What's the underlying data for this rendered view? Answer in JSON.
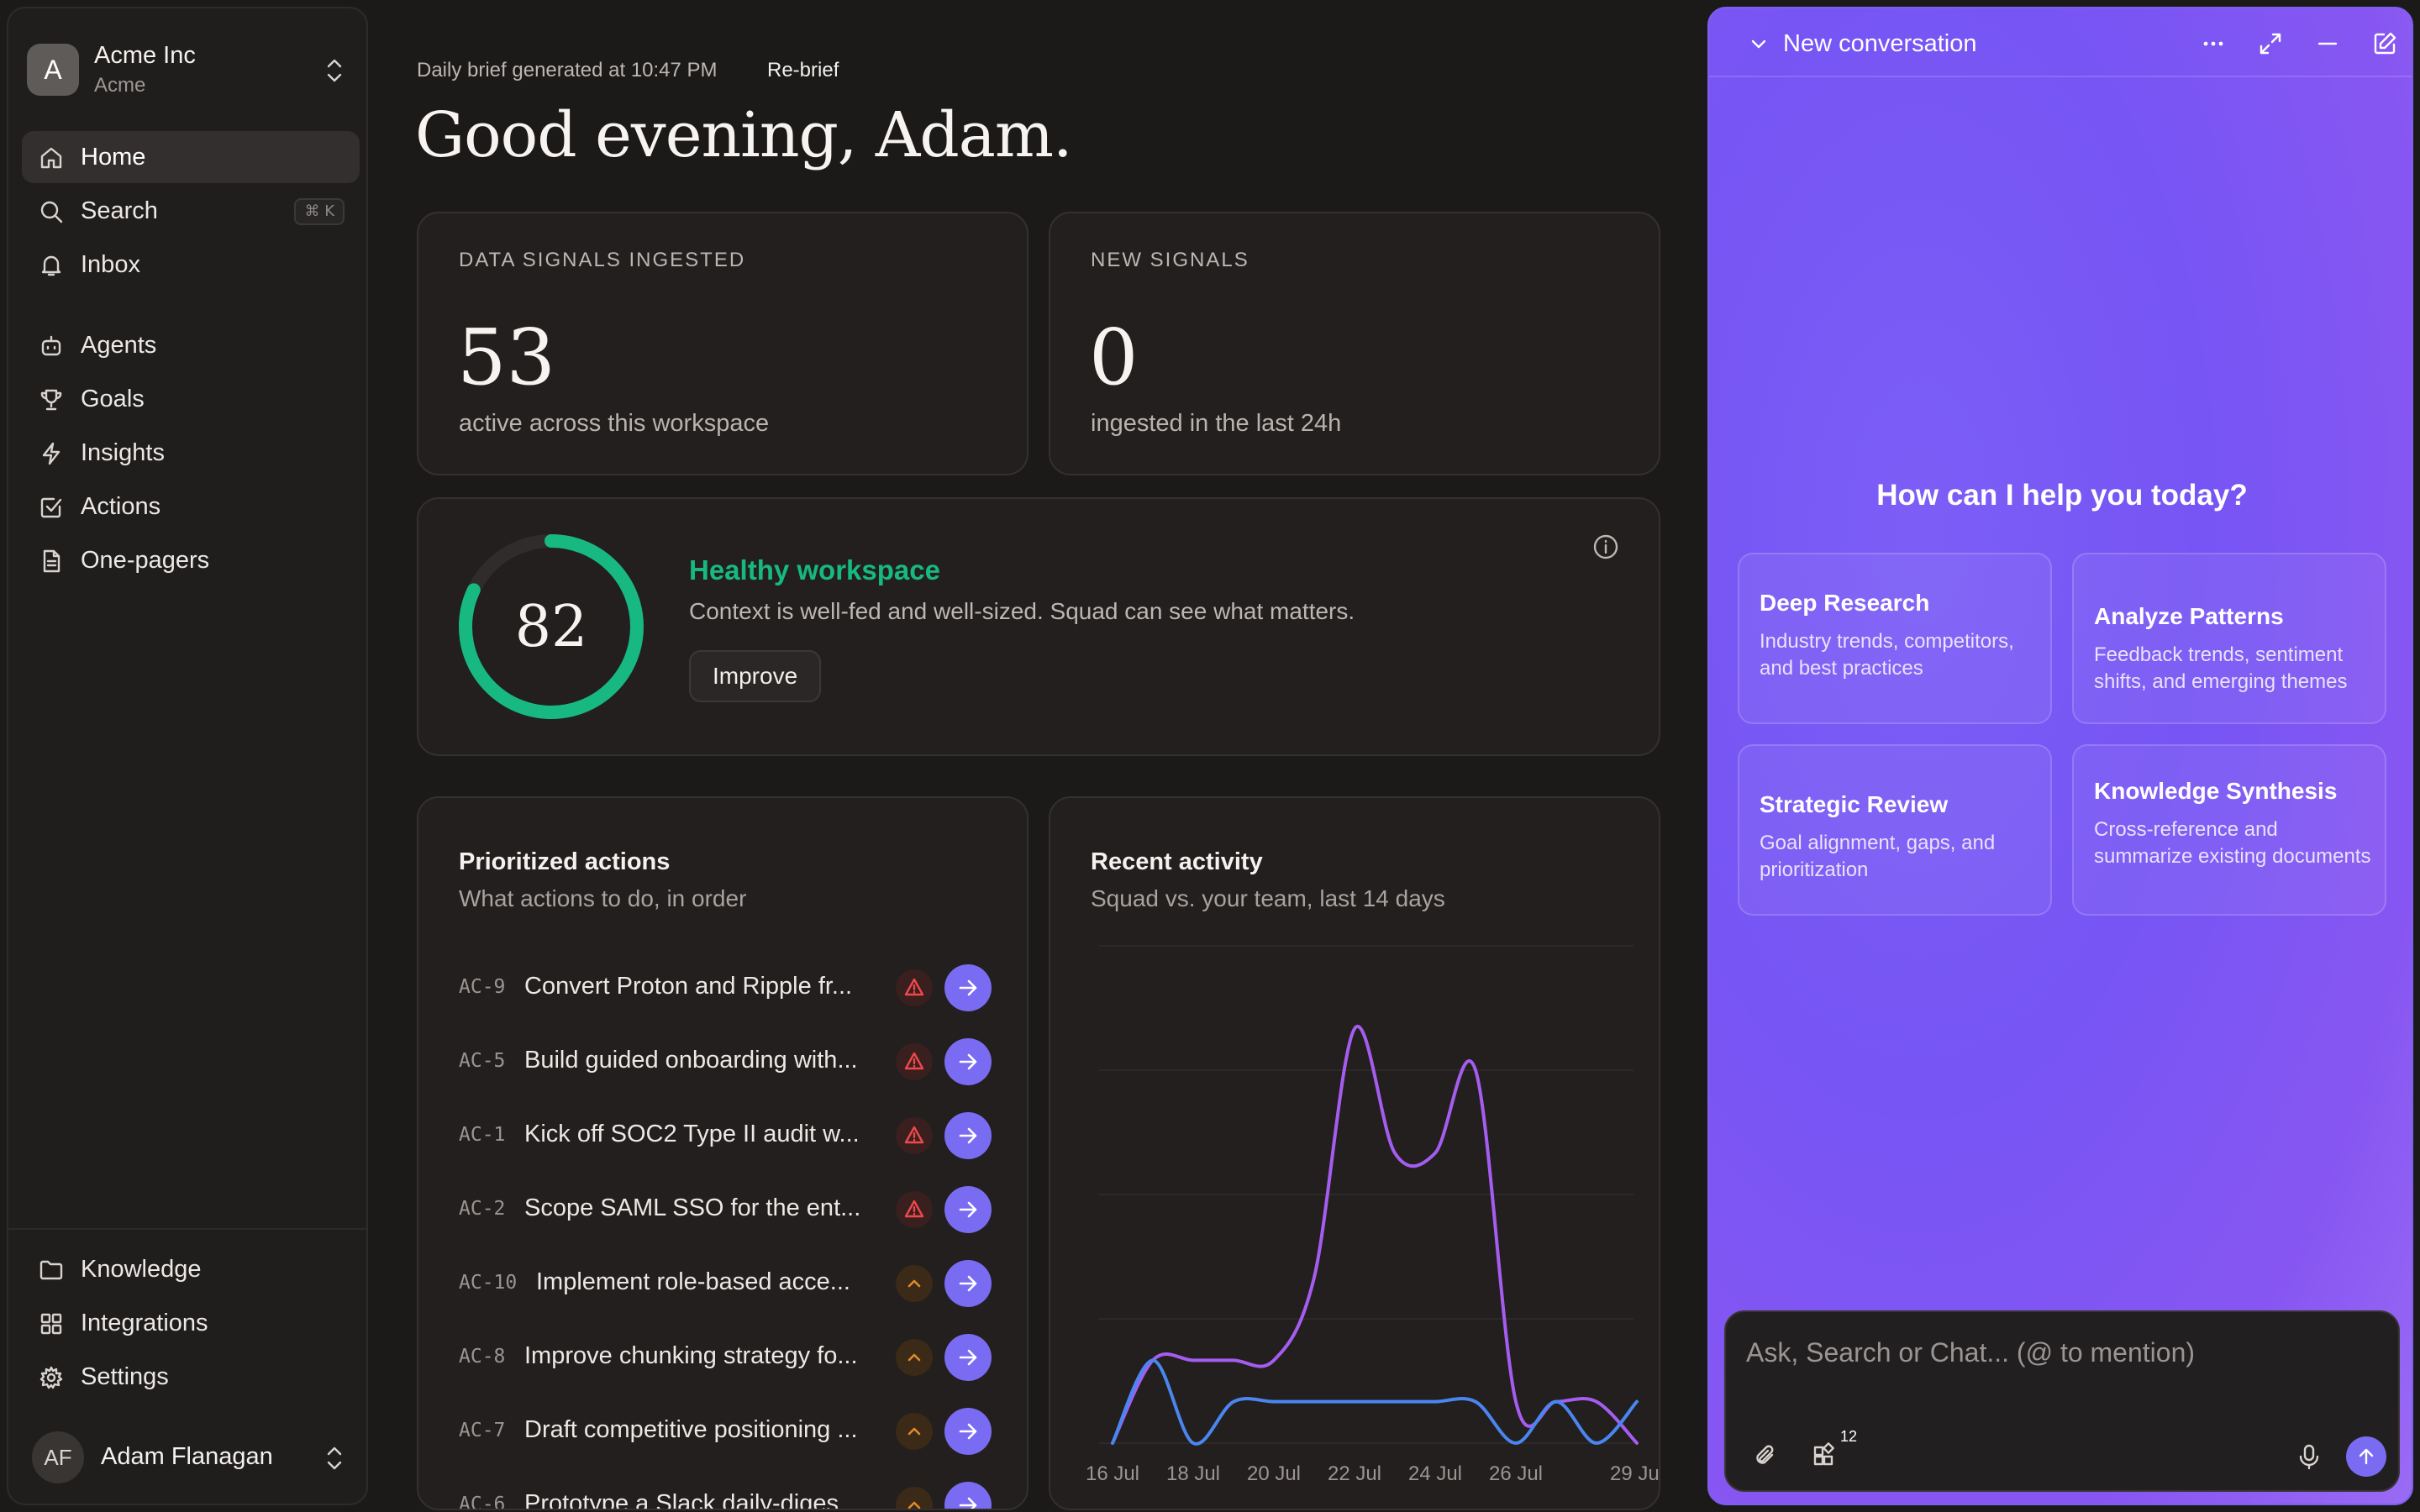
{
  "workspace": {
    "initial": "A",
    "name": "Acme Inc",
    "sub": "Acme"
  },
  "nav": {
    "home": "Home",
    "search": "Search",
    "search_shortcut": "⌘ K",
    "inbox": "Inbox",
    "agents": "Agents",
    "goals": "Goals",
    "insights": "Insights",
    "actions": "Actions",
    "onepagers": "One-pagers",
    "knowledge": "Knowledge",
    "integrations": "Integrations",
    "settings": "Settings"
  },
  "user": {
    "initials": "AF",
    "name": "Adam Flanagan"
  },
  "brief": {
    "generated": "Daily brief generated at 10:47 PM",
    "rebrief": "Re-brief",
    "greeting": "Good evening, Adam."
  },
  "metrics": {
    "ingested_label": "DATA SIGNALS INGESTED",
    "ingested_value": "53",
    "ingested_sub": "active across this workspace",
    "new_label": "NEW SIGNALS",
    "new_value": "0",
    "new_sub": "ingested in the last 24h"
  },
  "health": {
    "score": "82",
    "score_fraction": 0.82,
    "title": "Healthy workspace",
    "desc": "Context is well-fed and well-sized. Squad can see what matters.",
    "improve": "Improve",
    "accent": "#17b881"
  },
  "actions": {
    "title": "Prioritized actions",
    "sub": "What actions to do, in order",
    "items": [
      {
        "id": "AC-9",
        "title": "Convert Proton and Ripple fr...",
        "priority": "urgent"
      },
      {
        "id": "AC-5",
        "title": "Build guided onboarding with...",
        "priority": "urgent"
      },
      {
        "id": "AC-1",
        "title": "Kick off SOC2 Type II audit w...",
        "priority": "urgent"
      },
      {
        "id": "AC-2",
        "title": "Scope SAML SSO for the ent...",
        "priority": "urgent"
      },
      {
        "id": "AC-10",
        "title": "Implement role-based acce...",
        "priority": "high"
      },
      {
        "id": "AC-8",
        "title": "Improve chunking strategy fo...",
        "priority": "high"
      },
      {
        "id": "AC-7",
        "title": "Draft competitive positioning ...",
        "priority": "high"
      },
      {
        "id": "AC-6",
        "title": "Prototype a Slack daily-diges",
        "priority": "high"
      }
    ]
  },
  "activity": {
    "title": "Recent activity",
    "sub": "Squad vs. your team, last 14 days"
  },
  "chart_data": {
    "type": "line",
    "x": [
      "16 Jul",
      "17 Jul",
      "18 Jul",
      "19 Jul",
      "20 Jul",
      "21 Jul",
      "22 Jul",
      "23 Jul",
      "24 Jul",
      "25 Jul",
      "26 Jul",
      "27 Jul",
      "28 Jul",
      "29 Jul"
    ],
    "tick_labels": [
      "16 Jul",
      "18 Jul",
      "20 Jul",
      "22 Jul",
      "24 Jul",
      "26 Jul",
      "29 Jul"
    ],
    "series": [
      {
        "values": [
          0,
          2,
          2,
          2,
          2,
          4,
          10,
          7,
          7,
          9,
          1,
          1,
          1,
          0
        ],
        "color": "#a55df0"
      },
      {
        "values": [
          0,
          2,
          0,
          1,
          1,
          1,
          1,
          1,
          1,
          1,
          0,
          1,
          0,
          1
        ],
        "color": "#4a86f0"
      }
    ],
    "ylim": [
      0,
      12
    ],
    "grid": true
  },
  "assistant": {
    "title": "New conversation",
    "hello": "How can I help you today?",
    "suggestions": [
      {
        "title": "Deep Research",
        "desc": "Industry trends, competitors, and best practices"
      },
      {
        "title": "Analyze Patterns",
        "desc": "Feedback trends, sentiment shifts, and emerging themes"
      },
      {
        "title": "Strategic Review",
        "desc": "Goal alignment, gaps, and prioritization"
      },
      {
        "title": "Knowledge Synthesis",
        "desc": "Cross-reference and summarize existing documents"
      }
    ],
    "placeholder": "Ask, Search or Chat... (@ to mention)",
    "apps_count": "12"
  }
}
